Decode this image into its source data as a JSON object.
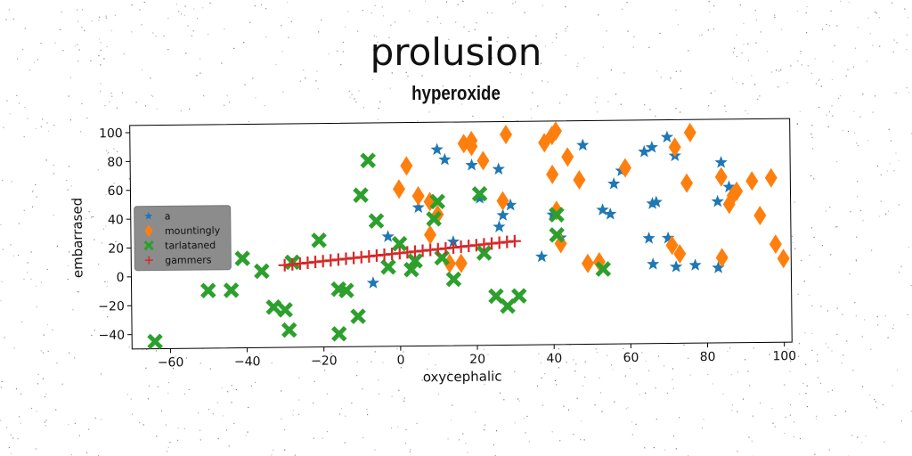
{
  "chart_data": {
    "type": "scatter",
    "title": "prolusion",
    "subtitle": "hyperoxide",
    "xlabel": "oxycephalic",
    "ylabel": "embarrased",
    "xlim": [
      -70,
      102
    ],
    "ylim": [
      -50,
      105
    ],
    "xticks": [
      -60,
      -40,
      -20,
      0,
      20,
      40,
      60,
      80,
      100
    ],
    "yticks": [
      -40,
      -20,
      0,
      20,
      40,
      60,
      80,
      100
    ],
    "legend_position": "center-left",
    "series": [
      {
        "name": "a",
        "marker": "star",
        "color": "#1f77b4",
        "points": [
          [
            10,
            86
          ],
          [
            12,
            79
          ],
          [
            19,
            75
          ],
          [
            21,
            52
          ],
          [
            26,
            72
          ],
          [
            26,
            32
          ],
          [
            27,
            40
          ],
          [
            29,
            47
          ],
          [
            5,
            46
          ],
          [
            14,
            22
          ],
          [
            -3,
            26
          ],
          [
            -7,
            -6
          ],
          [
            37,
            11
          ],
          [
            40,
            40
          ],
          [
            42,
            24
          ],
          [
            48,
            88
          ],
          [
            53,
            43
          ],
          [
            55,
            40
          ],
          [
            56,
            61
          ],
          [
            58,
            70
          ],
          [
            64,
            83
          ],
          [
            66,
            86
          ],
          [
            66,
            47
          ],
          [
            67,
            48
          ],
          [
            65,
            23
          ],
          [
            66,
            5
          ],
          [
            70,
            93
          ],
          [
            72,
            80
          ],
          [
            70,
            23
          ],
          [
            72,
            3
          ],
          [
            77,
            4
          ],
          [
            83,
            48
          ],
          [
            84,
            75
          ],
          [
            86,
            58
          ],
          [
            83,
            2
          ]
        ]
      },
      {
        "name": "mountingly",
        "marker": "diamond",
        "color": "#ff7f0e",
        "points": [
          [
            2,
            75
          ],
          [
            0,
            59
          ],
          [
            5,
            54
          ],
          [
            8,
            50
          ],
          [
            10,
            41
          ],
          [
            8,
            27
          ],
          [
            13,
            7
          ],
          [
            16,
            7
          ],
          [
            17,
            90
          ],
          [
            19,
            92
          ],
          [
            19,
            88
          ],
          [
            22,
            78
          ],
          [
            27,
            50
          ],
          [
            28,
            96
          ],
          [
            38,
            90
          ],
          [
            40,
            95
          ],
          [
            41,
            98
          ],
          [
            40,
            68
          ],
          [
            44,
            80
          ],
          [
            41,
            43
          ],
          [
            42,
            20
          ],
          [
            47,
            64
          ],
          [
            49,
            6
          ],
          [
            52,
            7
          ],
          [
            59,
            72
          ],
          [
            72,
            86
          ],
          [
            76,
            96
          ],
          [
            75,
            61
          ],
          [
            71,
            18
          ],
          [
            73,
            12
          ],
          [
            84,
            65
          ],
          [
            86,
            46
          ],
          [
            87,
            52
          ],
          [
            88,
            55
          ],
          [
            92,
            62
          ],
          [
            94,
            38
          ],
          [
            97,
            64
          ],
          [
            98,
            18
          ],
          [
            100,
            8
          ],
          [
            84,
            9
          ]
        ]
      },
      {
        "name": "tarlataned",
        "marker": "x",
        "color": "#2ca02c",
        "points": [
          [
            -64,
            -45
          ],
          [
            -50,
            -10
          ],
          [
            -44,
            -10
          ],
          [
            -41,
            12
          ],
          [
            -36,
            3
          ],
          [
            -33,
            -22
          ],
          [
            -30,
            -24
          ],
          [
            -29,
            -38
          ],
          [
            -28,
            9
          ],
          [
            -21,
            24
          ],
          [
            -16,
            -10
          ],
          [
            -16,
            -41
          ],
          [
            -14,
            -11
          ],
          [
            -11,
            -29
          ],
          [
            -10,
            55
          ],
          [
            -8,
            79
          ],
          [
            -6,
            37
          ],
          [
            -3,
            5
          ],
          [
            0,
            21
          ],
          [
            3,
            3
          ],
          [
            4,
            9
          ],
          [
            9,
            38
          ],
          [
            10,
            50
          ],
          [
            11,
            11
          ],
          [
            14,
            -4
          ],
          [
            21,
            55
          ],
          [
            22,
            14
          ],
          [
            25,
            -16
          ],
          [
            28,
            -23
          ],
          [
            31,
            -16
          ],
          [
            41,
            26
          ],
          [
            41,
            40
          ],
          [
            53,
            2
          ]
        ]
      },
      {
        "name": "gammers",
        "marker": "plus",
        "color": "#d62728",
        "points": [
          [
            -30,
            7
          ],
          [
            -28,
            7.5
          ],
          [
            -26,
            8
          ],
          [
            -24,
            8.5
          ],
          [
            -22,
            9
          ],
          [
            -20,
            9.5
          ],
          [
            -18,
            10
          ],
          [
            -16,
            10.5
          ],
          [
            -14,
            11
          ],
          [
            -12,
            11.5
          ],
          [
            -10,
            12
          ],
          [
            -8,
            12.5
          ],
          [
            -6,
            13
          ],
          [
            -4,
            13.5
          ],
          [
            -2,
            14
          ],
          [
            0,
            14.5
          ],
          [
            2,
            15
          ],
          [
            4,
            15.5
          ],
          [
            6,
            16
          ],
          [
            8,
            16.5
          ],
          [
            10,
            17
          ],
          [
            12,
            17.5
          ],
          [
            14,
            18
          ],
          [
            16,
            18.5
          ],
          [
            18,
            19
          ],
          [
            20,
            19.5
          ],
          [
            22,
            20
          ],
          [
            24,
            20.5
          ],
          [
            26,
            21
          ],
          [
            28,
            21.5
          ],
          [
            30,
            22
          ]
        ]
      }
    ]
  }
}
